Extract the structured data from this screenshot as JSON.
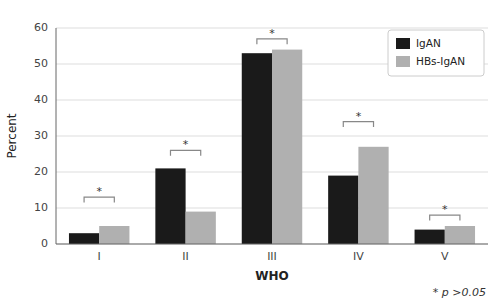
{
  "chart_data": {
    "type": "bar",
    "xlabel": "WHO",
    "ylabel": "Percent",
    "categories": [
      "I",
      "II",
      "III",
      "IV",
      "V"
    ],
    "series": [
      {
        "name": "IgAN",
        "color": "#1a1a1a",
        "values": [
          3,
          21,
          53,
          19,
          4
        ]
      },
      {
        "name": "HBs-IgAN",
        "color": "#b0b0b0",
        "values": [
          5,
          9,
          54,
          27,
          5
        ]
      }
    ],
    "ylim": [
      0,
      60
    ],
    "yticks": [
      0,
      10,
      20,
      30,
      40,
      50,
      60
    ],
    "grid": true,
    "legend": "upper right",
    "bracket_heights": [
      13,
      26,
      57,
      34,
      8
    ],
    "bracket_tick": 1.5,
    "bracket_label": "*",
    "annotations": [
      "* p >0.05"
    ]
  }
}
